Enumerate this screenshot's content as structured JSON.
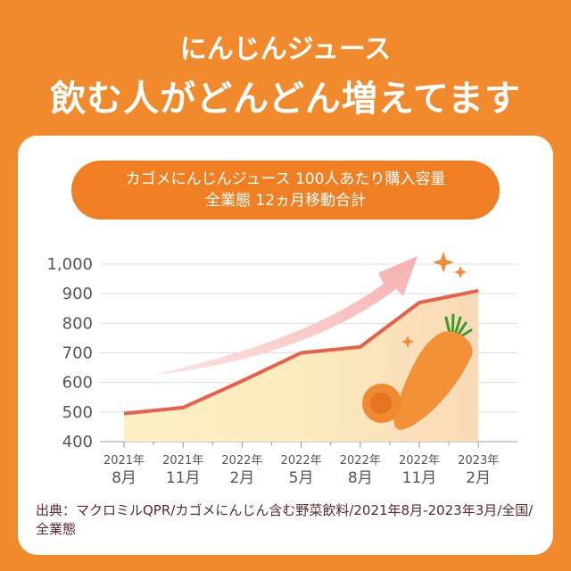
{
  "header": {
    "line1": "にんじんジュース",
    "line2": "飲む人がどんどん増えてます"
  },
  "pill": {
    "line1": "カゴメにんじんジュース 100人あたり購入容量",
    "line2": "全業態 12ヵ月移動合計"
  },
  "chart_data": {
    "type": "area",
    "title": "カゴメにんじんジュース 100人あたり購入容量 全業態 12ヵ月移動合計",
    "categories": [
      {
        "year": "2021年",
        "month": "8月"
      },
      {
        "year": "2021年",
        "month": "11月"
      },
      {
        "year": "2022年",
        "month": "2月"
      },
      {
        "year": "2022年",
        "month": "5月"
      },
      {
        "year": "2022年",
        "month": "8月"
      },
      {
        "year": "2022年",
        "month": "11月"
      },
      {
        "year": "2023年",
        "month": "2月"
      }
    ],
    "values": [
      495,
      515,
      605,
      700,
      720,
      870,
      910
    ],
    "yticks": [
      "400",
      "500",
      "600",
      "700",
      "800",
      "900",
      "1,000"
    ],
    "ylim": [
      400,
      1000
    ],
    "grid": true,
    "line_color": "#E8604A"
  },
  "source": "出典：マクロミルQPR/カゴメにんじん含む野菜飲料/2021年8月-2023年3月/全国/全業態"
}
